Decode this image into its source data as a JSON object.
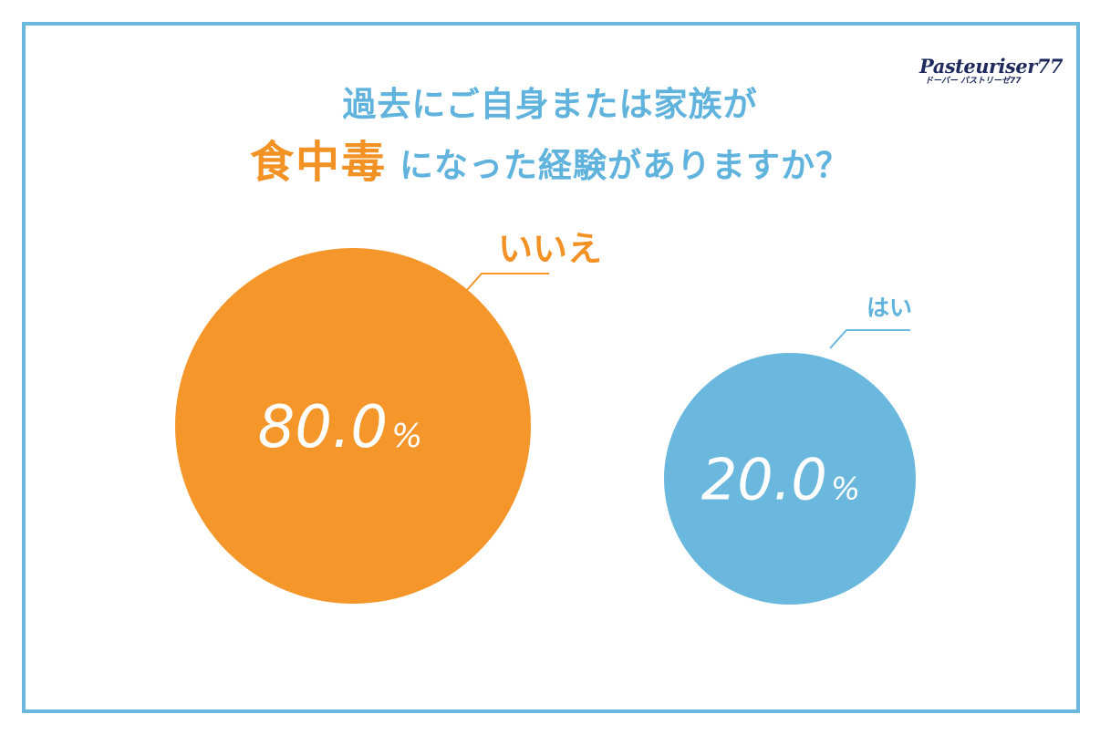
{
  "title": {
    "line1": "過去にご自身または家族が",
    "emphasis": "食中毒",
    "line2_rest": "になった経験がありますか？"
  },
  "logo": {
    "main": "Pasteuriser77",
    "sub": "ドーバー パストリーゼ77"
  },
  "colors": {
    "orange": "#f5962a",
    "blue": "#6bb8de",
    "title_blue": "#5fb3dc",
    "frame": "#6bb8de"
  },
  "chart_data": {
    "type": "bubble",
    "categories": [
      "いいえ",
      "はい"
    ],
    "values": [
      80.0,
      20.0
    ],
    "value_labels": [
      "80.0",
      "20.0"
    ],
    "unit": "%",
    "colors": [
      "#f5962a",
      "#6bb8de"
    ]
  }
}
